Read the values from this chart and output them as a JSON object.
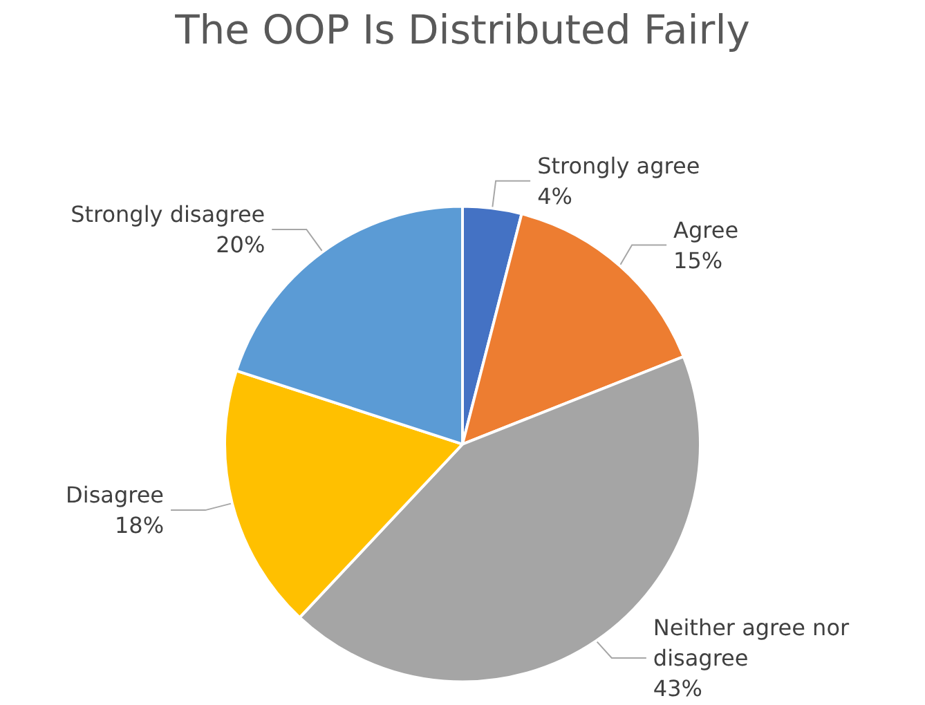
{
  "chart_data": {
    "type": "pie",
    "title": "The OOP Is Distributed Fairly",
    "categories": [
      "Strongly agree",
      "Agree",
      "Neither agree nor disagree",
      "Disagree",
      "Strongly disagree"
    ],
    "values": [
      4,
      15,
      43,
      18,
      20
    ],
    "colors": [
      "#4472c4",
      "#ed7d31",
      "#a5a5a5",
      "#ffc000",
      "#5b9bd5"
    ],
    "value_labels": [
      "4%",
      "15%",
      "43%",
      "18%",
      "20%"
    ],
    "legend": false
  }
}
